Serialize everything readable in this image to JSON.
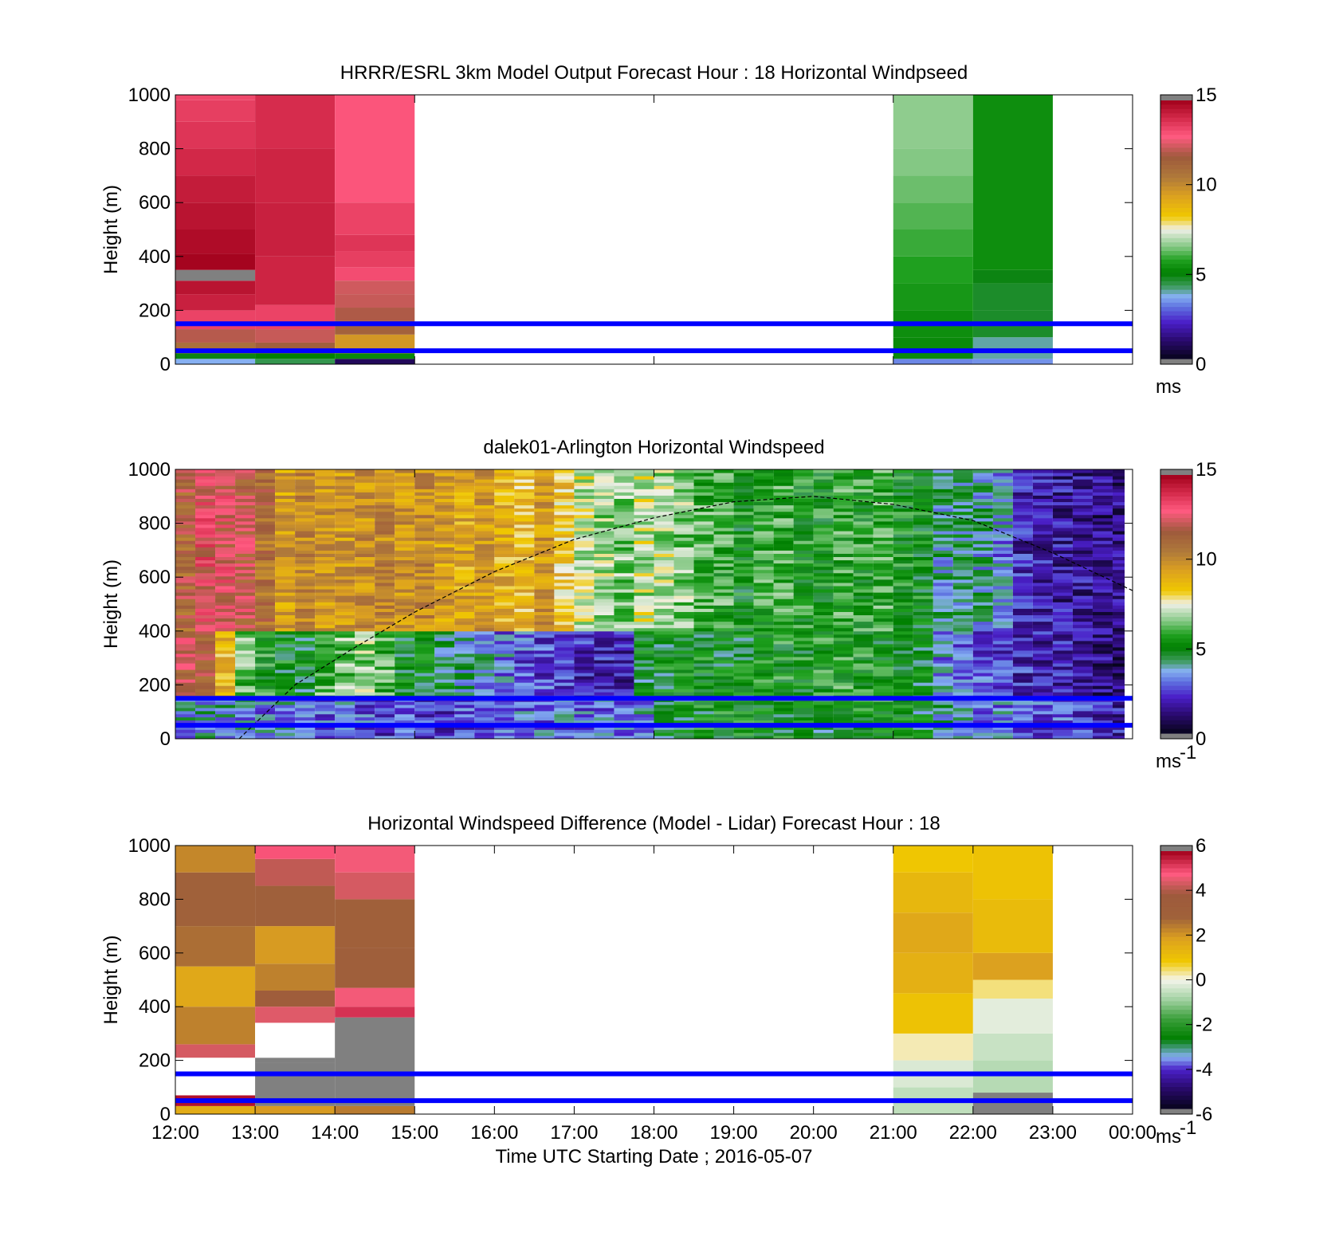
{
  "chart_data": [
    {
      "type": "heatmap",
      "title": "HRRR/ESRL 3km Model Output   Forecast Hour : 18 Horizontal Windpseed",
      "ylabel": "Height (m)",
      "xlabel": "",
      "ylim": [
        0,
        1000
      ],
      "yticks": [
        "0",
        "200",
        "400",
        "600",
        "800",
        "1000"
      ],
      "xrange_hours": [
        12,
        24
      ],
      "xticks_shown": false,
      "colorbar": {
        "ticks": [
          "0",
          "5",
          "10",
          "15"
        ],
        "min": 0,
        "max": 15,
        "unit": "ms",
        "unit_sup": "",
        "colormap": "speed"
      },
      "reference_lines_m": [
        50,
        150
      ],
      "columns": [
        {
          "start_hour": 12,
          "end_hour": 13,
          "bins": [
            [
              0,
              20,
              3.6
            ],
            [
              20,
              40,
              4.8
            ],
            [
              40,
              80,
              10.9
            ],
            [
              80,
              130,
              12.0
            ],
            [
              130,
              200,
              13.4
            ],
            [
              200,
              260,
              14.2
            ],
            [
              260,
              310,
              14.5
            ],
            [
              310,
              350,
              -1
            ],
            [
              350,
              410,
              14.9
            ],
            [
              410,
              500,
              14.7
            ],
            [
              500,
              600,
              14.5
            ],
            [
              600,
              700,
              14.3
            ],
            [
              700,
              800,
              14.0
            ],
            [
              800,
              900,
              13.7
            ],
            [
              900,
              980,
              13.5
            ],
            [
              980,
              1000,
              13.3
            ]
          ]
        },
        {
          "start_hour": 13,
          "end_hour": 14,
          "bins": [
            [
              0,
              20,
              4.3
            ],
            [
              20,
              40,
              5.0
            ],
            [
              40,
              80,
              11.5
            ],
            [
              80,
              130,
              12.2
            ],
            [
              130,
              220,
              13.4
            ],
            [
              220,
              400,
              14.1
            ],
            [
              400,
              600,
              14.2
            ],
            [
              600,
              800,
              14.1
            ],
            [
              800,
              1000,
              13.9
            ]
          ]
        },
        {
          "start_hour": 14,
          "end_hour": 15,
          "bins": [
            [
              0,
              20,
              0.8
            ],
            [
              20,
              40,
              5.2
            ],
            [
              40,
              110,
              9.7
            ],
            [
              110,
              160,
              11.4
            ],
            [
              160,
              210,
              11.9
            ],
            [
              210,
              260,
              12.2
            ],
            [
              260,
              310,
              12.3
            ],
            [
              310,
              360,
              13.2
            ],
            [
              360,
              420,
              13.5
            ],
            [
              420,
              480,
              13.7
            ],
            [
              480,
              600,
              13.4
            ],
            [
              600,
              1000,
              13.0
            ]
          ]
        },
        {
          "start_hour": 21,
          "end_hour": 22,
          "bins": [
            [
              0,
              20,
              3.2
            ],
            [
              20,
              100,
              5.2
            ],
            [
              100,
              200,
              5.3
            ],
            [
              200,
              300,
              5.5
            ],
            [
              300,
              400,
              5.7
            ],
            [
              400,
              500,
              5.9
            ],
            [
              500,
              600,
              6.1
            ],
            [
              600,
              700,
              6.3
            ],
            [
              700,
              800,
              6.5
            ],
            [
              800,
              1000,
              6.6
            ]
          ]
        },
        {
          "start_hour": 22,
          "end_hour": 23,
          "bins": [
            [
              0,
              20,
              3.3
            ],
            [
              20,
              100,
              3.9
            ],
            [
              100,
              200,
              4.6
            ],
            [
              200,
              300,
              4.6
            ],
            [
              300,
              350,
              4.8
            ],
            [
              350,
              1000,
              5.3
            ]
          ]
        }
      ]
    },
    {
      "type": "heatmap",
      "title": "dalek01-Arlington  Horizontal Windspeed",
      "ylabel": "Height (m)",
      "xlabel": "",
      "ylim": [
        0,
        1000
      ],
      "yticks": [
        "0",
        "200",
        "400",
        "600",
        "800",
        "1000"
      ],
      "xrange_hours": [
        12,
        24
      ],
      "xticks_shown": false,
      "colorbar": {
        "ticks": [
          "0",
          "5",
          "10",
          "15"
        ],
        "min": 0,
        "max": 15,
        "unit": "ms",
        "unit_sup": "-1",
        "colormap": "speed"
      },
      "reference_lines_m": [
        50,
        150
      ],
      "boundary_layer_curve": {
        "x_hours": [
          12.8,
          13.5,
          14.2,
          15.0,
          16.0,
          17.0,
          18.0,
          19.0,
          20.0,
          21.0,
          22.0,
          23.0,
          24.0
        ],
        "height_m": [
          0,
          200,
          330,
          470,
          620,
          740,
          820,
          880,
          900,
          870,
          810,
          690,
          550
        ]
      },
      "lidar_columns_by_quarter_hour": {
        "start_hour": 12.0,
        "step_hours": 0.25,
        "lower_150m_mean": [
          3.5,
          3.7,
          3.6,
          3.4,
          3.2,
          3.3,
          3.1,
          2.8,
          2.9,
          2.7,
          2.4,
          2.6,
          2.3,
          2.1,
          2.5,
          2.4,
          2.6,
          2.8,
          2.9,
          3.0,
          2.8,
          3.1,
          3.2,
          3.4,
          4.5,
          4.8,
          5.0,
          5.2,
          5.1,
          4.9,
          5.0,
          4.8,
          4.7,
          4.9,
          5.1,
          5.3,
          4.8,
          4.6,
          3.8,
          3.5,
          3.2,
          3.0,
          2.8,
          2.6,
          2.5,
          2.2,
          2.0,
          1.8
        ],
        "mid_150_400m_mean": [
          12.0,
          11.5,
          8.7,
          6.3,
          5.4,
          5.0,
          4.8,
          6.0,
          6.4,
          6.6,
          6.1,
          5.0,
          4.9,
          4.5,
          3.9,
          3.6,
          3.0,
          2.7,
          2.5,
          2.2,
          2.1,
          1.9,
          1.8,
          4.7,
          4.9,
          5.1,
          5.0,
          4.8,
          4.9,
          5.2,
          5.3,
          5.2,
          5.5,
          5.6,
          5.3,
          5.1,
          4.9,
          4.7,
          3.2,
          2.9,
          2.6,
          2.3,
          2.1,
          1.9,
          1.8,
          1.5,
          1.2,
          1.0
        ],
        "upper_400_1000m_mean": [
          11.4,
          12.7,
          12.4,
          12.0,
          11.0,
          9.5,
          10.2,
          9.8,
          9.7,
          9.9,
          10.1,
          9.8,
          10.0,
          9.4,
          9.2,
          9.6,
          9.0,
          8.6,
          9.7,
          8.4,
          7.3,
          6.8,
          6.5,
          7.1,
          6.9,
          6.5,
          6.0,
          5.8,
          5.2,
          5.7,
          5.9,
          5.4,
          5.3,
          5.8,
          5.5,
          5.9,
          5.3,
          5.1,
          3.9,
          4.2,
          3.8,
          3.2,
          2.0,
          1.8,
          1.6,
          1.5,
          1.3,
          1.2
        ]
      }
    },
    {
      "type": "heatmap",
      "title": "Horizontal Windspeed Difference (Model - Lidar) Forecast Hour : 18",
      "ylabel": "Height (m)",
      "xlabel": "Time UTC  Starting Date ; 2016-05-07",
      "ylim": [
        0,
        1000
      ],
      "yticks": [
        "0",
        "200",
        "400",
        "600",
        "800",
        "1000"
      ],
      "xticks": [
        "12:00",
        "13:00",
        "14:00",
        "15:00",
        "16:00",
        "17:00",
        "18:00",
        "19:00",
        "20:00",
        "21:00",
        "22:00",
        "23:00",
        "00:00"
      ],
      "xrange_hours": [
        12,
        24
      ],
      "xticks_shown": true,
      "colorbar": {
        "ticks": [
          "-6",
          "-4",
          "-2",
          "0",
          "2",
          "4",
          "6"
        ],
        "min": -6,
        "max": 6,
        "unit": "ms",
        "unit_sup": "-1",
        "colormap": "diff"
      },
      "reference_lines_m": [
        50,
        150
      ],
      "columns": [
        {
          "start_hour": 12,
          "end_hour": 13,
          "bins": [
            [
              0,
              30,
              1.6
            ],
            [
              30,
              70,
              5.8
            ],
            [
              70,
              210,
              "nan"
            ],
            [
              210,
              260,
              4.5
            ],
            [
              260,
              400,
              2.4
            ],
            [
              400,
              550,
              1.7
            ],
            [
              550,
              700,
              2.7
            ],
            [
              700,
              900,
              3.0
            ],
            [
              900,
              1000,
              2.3
            ]
          ]
        },
        {
          "start_hour": 13,
          "end_hour": 14,
          "bins": [
            [
              0,
              30,
              2.0
            ],
            [
              30,
              190,
              -9
            ],
            [
              190,
              210,
              -9
            ],
            [
              210,
              340,
              "nan"
            ],
            [
              340,
              400,
              4.6
            ],
            [
              400,
              460,
              3.5
            ],
            [
              460,
              560,
              2.4
            ],
            [
              560,
              700,
              2.0
            ],
            [
              700,
              850,
              3.2
            ],
            [
              850,
              950,
              4.3
            ],
            [
              950,
              1000,
              5.0
            ]
          ]
        },
        {
          "start_hour": 14,
          "end_hour": 15,
          "bins": [
            [
              0,
              30,
              2.5
            ],
            [
              30,
              360,
              -9
            ],
            [
              360,
              400,
              5.4
            ],
            [
              400,
              470,
              4.8
            ],
            [
              470,
              620,
              3.3
            ],
            [
              620,
              800,
              3.1
            ],
            [
              800,
              900,
              4.5
            ],
            [
              900,
              1000,
              4.8
            ]
          ]
        },
        {
          "start_hour": 21,
          "end_hour": 22,
          "bins": [
            [
              0,
              100,
              -0.6
            ],
            [
              100,
              200,
              -0.3
            ],
            [
              200,
              300,
              0.2
            ],
            [
              300,
              450,
              1.0
            ],
            [
              450,
              600,
              1.5
            ],
            [
              600,
              750,
              1.7
            ],
            [
              750,
              900,
              1.3
            ],
            [
              900,
              1000,
              0.9
            ]
          ]
        },
        {
          "start_hour": 22,
          "end_hour": 23,
          "bins": [
            [
              0,
              80,
              -9
            ],
            [
              80,
              200,
              -0.7
            ],
            [
              200,
              300,
              -0.5
            ],
            [
              300,
              430,
              -0.2
            ],
            [
              430,
              500,
              0.4
            ],
            [
              500,
              600,
              1.9
            ],
            [
              600,
              800,
              1.2
            ],
            [
              800,
              1000,
              1.0
            ]
          ]
        }
      ]
    }
  ]
}
